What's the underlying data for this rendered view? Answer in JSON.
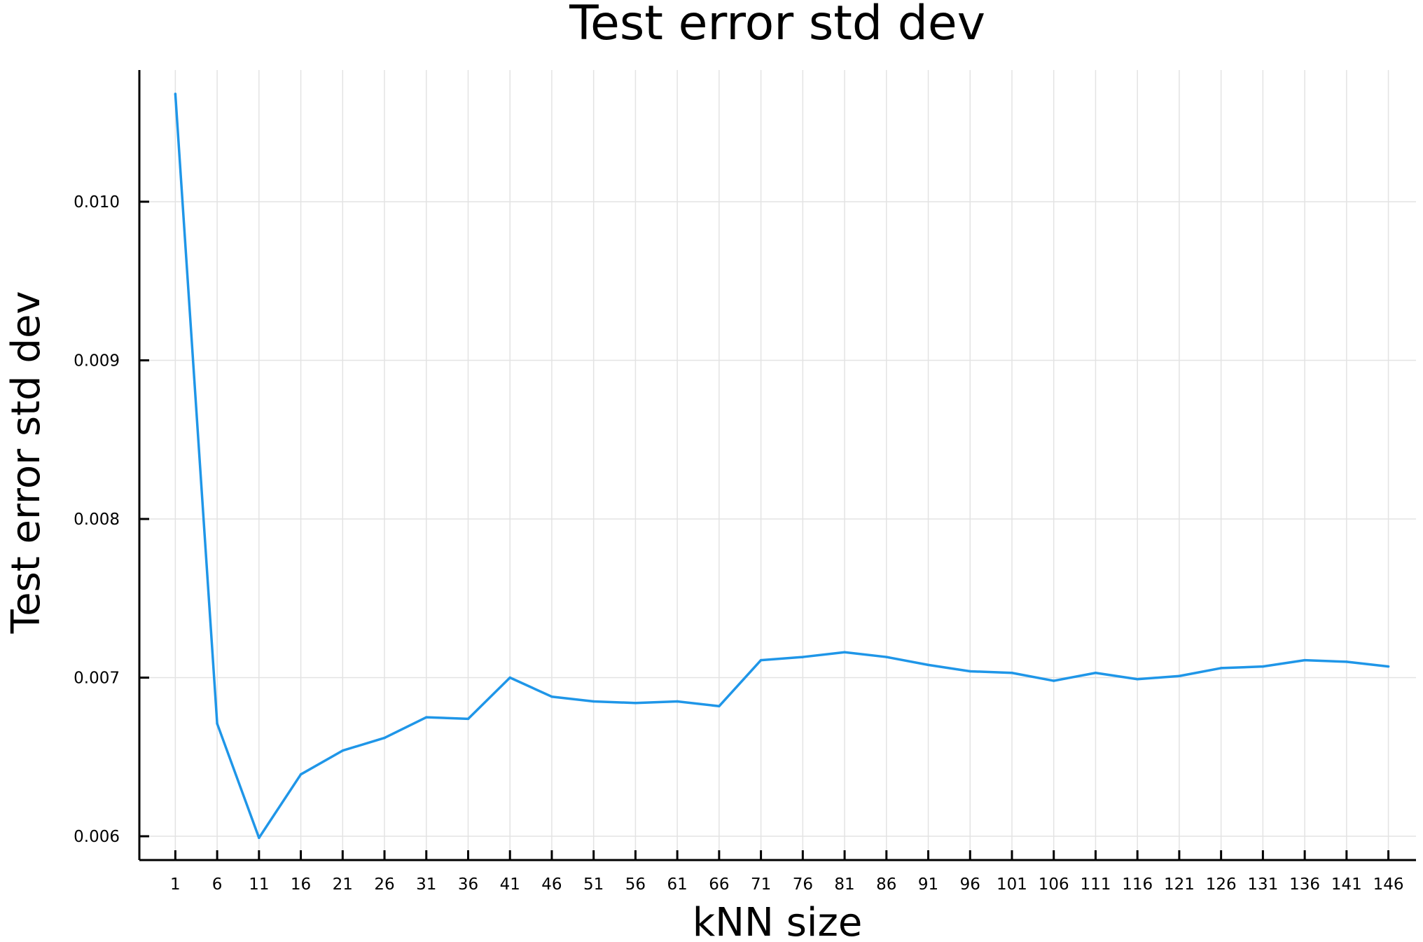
{
  "chart_data": {
    "type": "line",
    "title": "Test error std dev",
    "xlabel": "kNN size",
    "ylabel": "Test error std dev",
    "x": [
      1,
      6,
      11,
      16,
      21,
      26,
      31,
      36,
      41,
      46,
      51,
      56,
      61,
      66,
      71,
      76,
      81,
      86,
      91,
      96,
      101,
      106,
      111,
      116,
      121,
      126,
      131,
      136,
      141,
      146
    ],
    "series": [
      {
        "values": [
          0.01068,
          0.00671,
          0.00599,
          0.00639,
          0.00654,
          0.00662,
          0.00675,
          0.00674,
          0.007,
          0.00688,
          0.00685,
          0.00684,
          0.00685,
          0.00682,
          0.00711,
          0.00713,
          0.00716,
          0.00713,
          0.00708,
          0.00704,
          0.00703,
          0.00698,
          0.00703,
          0.00699,
          0.00701,
          0.00706,
          0.00707,
          0.00711,
          0.0071,
          0.00707
        ],
        "color": "#1f96e8"
      }
    ],
    "xticks": [
      "1",
      "6",
      "11",
      "16",
      "21",
      "26",
      "31",
      "36",
      "41",
      "46",
      "51",
      "56",
      "61",
      "66",
      "71",
      "76",
      "81",
      "86",
      "91",
      "96",
      "101",
      "106",
      "111",
      "116",
      "121",
      "126",
      "131",
      "136",
      "141",
      "146"
    ],
    "yticks": [
      0.006,
      0.007,
      0.008,
      0.009,
      0.01
    ],
    "ytick_labels": [
      "0.006",
      "0.007",
      "0.008",
      "0.009",
      "0.010"
    ],
    "xlim": [
      -3.3,
      149.3
    ],
    "ylim": [
      0.00585,
      0.01083
    ],
    "grid": true,
    "legend": "none"
  }
}
